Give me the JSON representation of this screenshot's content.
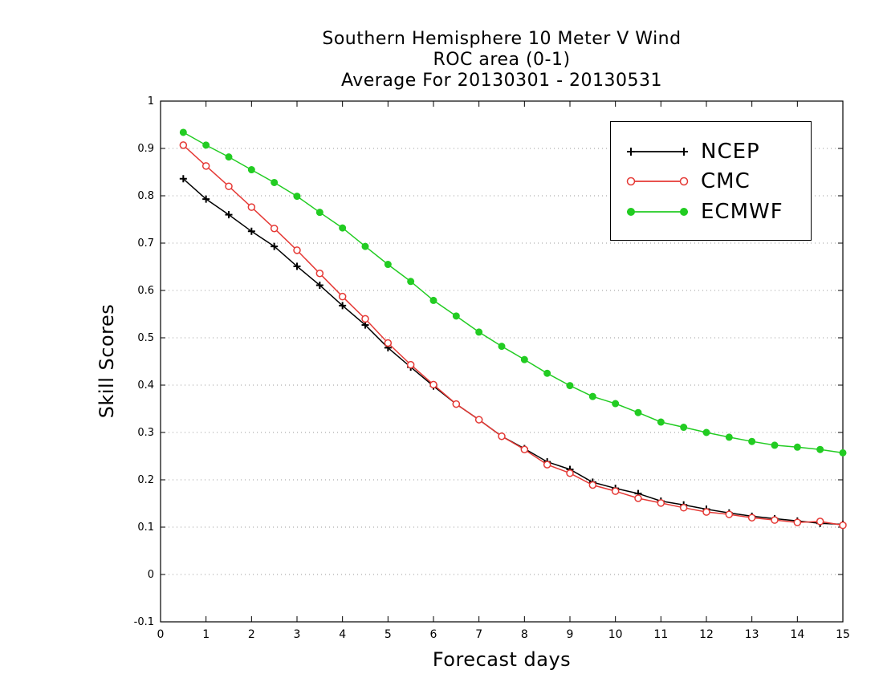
{
  "titles": {
    "line1": "Southern Hemisphere 10 Meter V Wind",
    "line2": "ROC area (0-1)",
    "line3": "Average For 20130301 - 20130531"
  },
  "chart_data": {
    "type": "line",
    "title": "Southern Hemisphere 10 Meter V Wind",
    "subtitle": "ROC area (0-1) / Average For 20130301 - 20130531",
    "xlabel": "Forecast days",
    "ylabel": "Skill Scores",
    "xlim": [
      0,
      15
    ],
    "ylim": [
      -0.1,
      1
    ],
    "x_ticks": [
      "0",
      "1",
      "2",
      "3",
      "4",
      "5",
      "6",
      "7",
      "8",
      "9",
      "10",
      "11",
      "12",
      "13",
      "14",
      "15"
    ],
    "y_ticks": [
      "-0.1",
      "0",
      "0.1",
      "0.2",
      "0.3",
      "0.4",
      "0.5",
      "0.6",
      "0.7",
      "0.8",
      "0.9",
      "1"
    ],
    "grid": "horizontal dotted",
    "legend_position": "top-right",
    "x": [
      0.5,
      1,
      1.5,
      2,
      2.5,
      3,
      3.5,
      4,
      4.5,
      5,
      5.5,
      6,
      6.5,
      7,
      7.5,
      8,
      8.5,
      9,
      9.5,
      10,
      10.5,
      11,
      11.5,
      12,
      12.5,
      13,
      13.5,
      14,
      14.5,
      15
    ],
    "series": [
      {
        "name": "NCEP",
        "color": "#000000",
        "marker": "plus",
        "values": [
          0.836,
          0.793,
          0.76,
          0.725,
          0.693,
          0.651,
          0.611,
          0.568,
          0.527,
          0.479,
          0.438,
          0.398,
          0.36,
          0.327,
          0.292,
          0.266,
          0.238,
          0.222,
          0.195,
          0.182,
          0.171,
          0.155,
          0.147,
          0.138,
          0.13,
          0.123,
          0.118,
          0.113,
          0.108,
          0.106
        ]
      },
      {
        "name": "CMC",
        "color": "#e53935",
        "marker": "open-circle",
        "values": [
          0.907,
          0.863,
          0.82,
          0.776,
          0.731,
          0.685,
          0.636,
          0.587,
          0.54,
          0.489,
          0.443,
          0.401,
          0.36,
          0.327,
          0.292,
          0.264,
          0.232,
          0.214,
          0.189,
          0.176,
          0.161,
          0.151,
          0.141,
          0.132,
          0.127,
          0.12,
          0.115,
          0.11,
          0.112,
          0.104
        ]
      },
      {
        "name": "ECMWF",
        "color": "#22cc22",
        "marker": "filled-circle",
        "values": [
          0.934,
          0.907,
          0.882,
          0.855,
          0.828,
          0.799,
          0.765,
          0.732,
          0.693,
          0.655,
          0.619,
          0.579,
          0.546,
          0.512,
          0.482,
          0.454,
          0.425,
          0.399,
          0.376,
          0.361,
          0.342,
          0.322,
          0.311,
          0.3,
          0.29,
          0.281,
          0.273,
          0.269,
          0.264,
          0.257
        ]
      }
    ]
  }
}
